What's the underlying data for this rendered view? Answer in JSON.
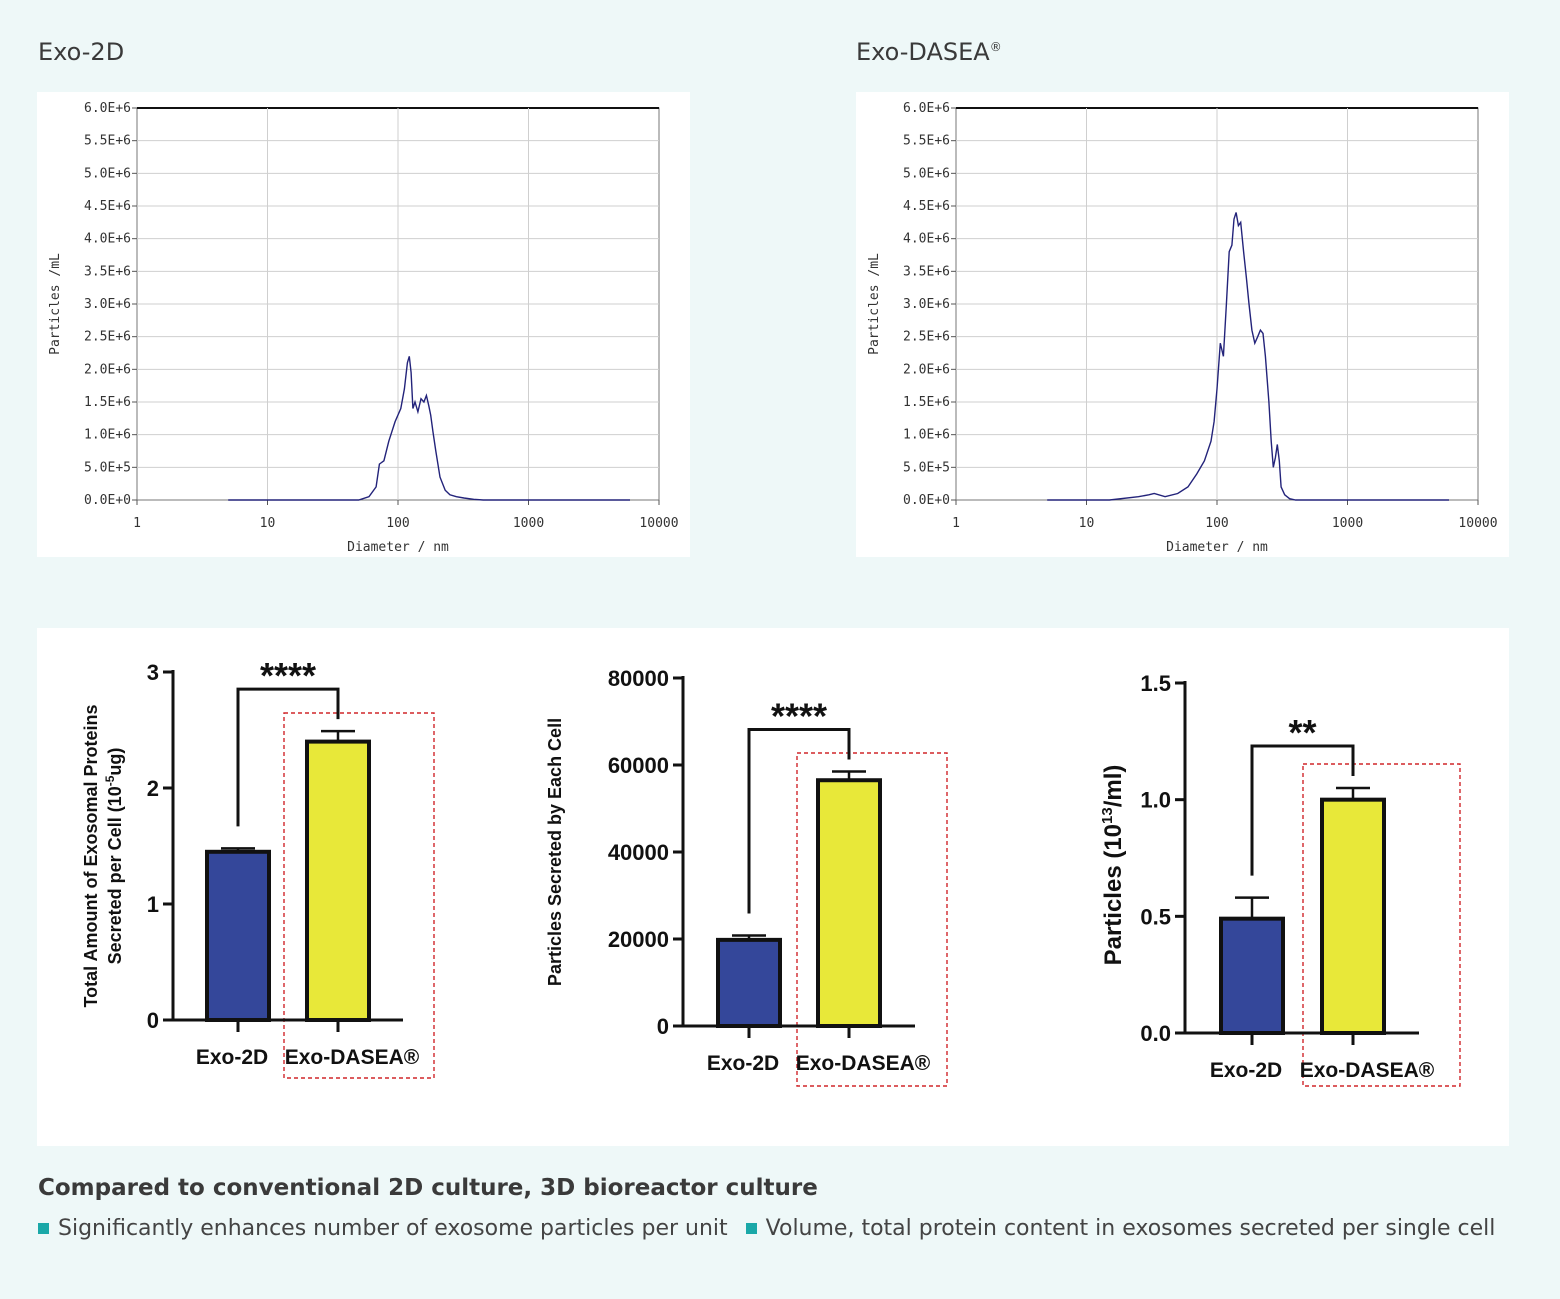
{
  "nta": {
    "left_title": "Exo-2D",
    "right_title_base": "Exo-DASEA",
    "right_title_mark": "®",
    "ylabel": "Particles /mL",
    "xlabel": "Diameter / nm",
    "y_ticks": [
      "0.0E+0",
      "5.0E+5",
      "1.0E+6",
      "1.5E+6",
      "2.0E+6",
      "2.5E+6",
      "3.0E+6",
      "3.5E+6",
      "4.0E+6",
      "4.5E+6",
      "5.0E+6",
      "5.5E+6",
      "6.0E+6"
    ],
    "x_ticks": [
      "1",
      "10",
      "100",
      "1000",
      "10000"
    ]
  },
  "bars": {
    "cat1": "Exo-2D",
    "cat2": "Exo-DASEA®",
    "c1": {
      "ylabel_line1": "Total Amount of Exosomal Proteins",
      "ylabel_line2_pre": "Secreted per Cell (10",
      "ylabel_line2_sup": "-5",
      "ylabel_line2_post": "ug)",
      "ticks": [
        "0",
        "1",
        "2",
        "3"
      ],
      "sig": "****"
    },
    "c2": {
      "ylabel": "Particles Secreted by Each Cell",
      "ticks": [
        "0",
        "20000",
        "40000",
        "60000",
        "80000"
      ],
      "sig": "****"
    },
    "c3": {
      "ylabel_pre": "Particles  (10",
      "ylabel_sup": "13",
      "ylabel_post": "/ml)",
      "ticks": [
        "0.0",
        "0.5",
        "1.0",
        "1.5"
      ],
      "sig": "**"
    }
  },
  "chart_data": [
    {
      "type": "line",
      "title": "Exo-2D",
      "xlabel": "Diameter / nm",
      "ylabel": "Particles /mL",
      "xscale": "log",
      "xlim": [
        1,
        10000
      ],
      "ylim": [
        0,
        6000000
      ],
      "x": [
        5,
        50,
        60,
        68,
        72,
        78,
        85,
        95,
        105,
        112,
        118,
        122,
        126,
        130,
        135,
        142,
        150,
        158,
        165,
        172,
        178,
        185,
        195,
        210,
        230,
        250,
        280,
        320,
        380,
        450,
        600,
        6000
      ],
      "y": [
        0,
        0,
        50000,
        200000,
        550000,
        600000,
        900000,
        1200000,
        1400000,
        1700000,
        2100000,
        2200000,
        1950000,
        1400000,
        1500000,
        1350000,
        1550000,
        1500000,
        1600000,
        1450000,
        1300000,
        1050000,
        750000,
        350000,
        150000,
        80000,
        50000,
        30000,
        10000,
        0,
        0,
        0
      ]
    },
    {
      "type": "line",
      "title": "Exo-DASEA®",
      "xlabel": "Diameter / nm",
      "ylabel": "Particles /mL",
      "xscale": "log",
      "xlim": [
        1,
        10000
      ],
      "ylim": [
        0,
        6000000
      ],
      "x": [
        5,
        15,
        25,
        30,
        33,
        40,
        50,
        60,
        70,
        80,
        90,
        95,
        100,
        106,
        112,
        118,
        124,
        130,
        135,
        140,
        146,
        152,
        160,
        168,
        176,
        185,
        195,
        205,
        215,
        225,
        235,
        250,
        260,
        270,
        280,
        290,
        300,
        310,
        330,
        360,
        400,
        600,
        6000
      ],
      "y": [
        0,
        0,
        50000,
        80000,
        100000,
        50000,
        100000,
        200000,
        400000,
        600000,
        900000,
        1200000,
        1700000,
        2400000,
        2200000,
        3000000,
        3800000,
        3900000,
        4300000,
        4400000,
        4200000,
        4250000,
        3800000,
        3400000,
        3000000,
        2600000,
        2400000,
        2500000,
        2600000,
        2550000,
        2200000,
        1500000,
        900000,
        500000,
        650000,
        850000,
        600000,
        200000,
        80000,
        20000,
        0,
        0,
        0
      ]
    },
    {
      "type": "bar",
      "categories": [
        "Exo-2D",
        "Exo-DASEA®"
      ],
      "values": [
        1.45,
        2.4
      ],
      "errors": [
        0.03,
        0.09
      ],
      "colors": [
        "#34479a",
        "#e8e839"
      ],
      "ylabel": "Total Amount of Exosomal Proteins Secreted per Cell (10-5ug)",
      "ylim": [
        0,
        3
      ],
      "significance": "****"
    },
    {
      "type": "bar",
      "categories": [
        "Exo-2D",
        "Exo-DASEA®"
      ],
      "values": [
        19800,
        56500
      ],
      "errors": [
        1000,
        2000
      ],
      "colors": [
        "#34479a",
        "#e8e839"
      ],
      "ylabel": "Particles Secreted by Each Cell",
      "ylim": [
        0,
        80000
      ],
      "significance": "****"
    },
    {
      "type": "bar",
      "categories": [
        "Exo-2D",
        "Exo-DASEA®"
      ],
      "values": [
        0.49,
        1.0
      ],
      "errors": [
        0.09,
        0.05
      ],
      "colors": [
        "#34479a",
        "#e8e839"
      ],
      "ylabel": "Particles (10^13/ml)",
      "ylim": [
        0,
        1.5
      ],
      "significance": "**"
    }
  ],
  "caption": {
    "title": "Compared to conventional 2D culture, 3D bioreactor culture",
    "bullet1": "Significantly enhances number of exosome particles per unit",
    "bullet2": "Volume, total protein content in exosomes secreted per single cell",
    "bullet_color": "#1aa8a8"
  }
}
